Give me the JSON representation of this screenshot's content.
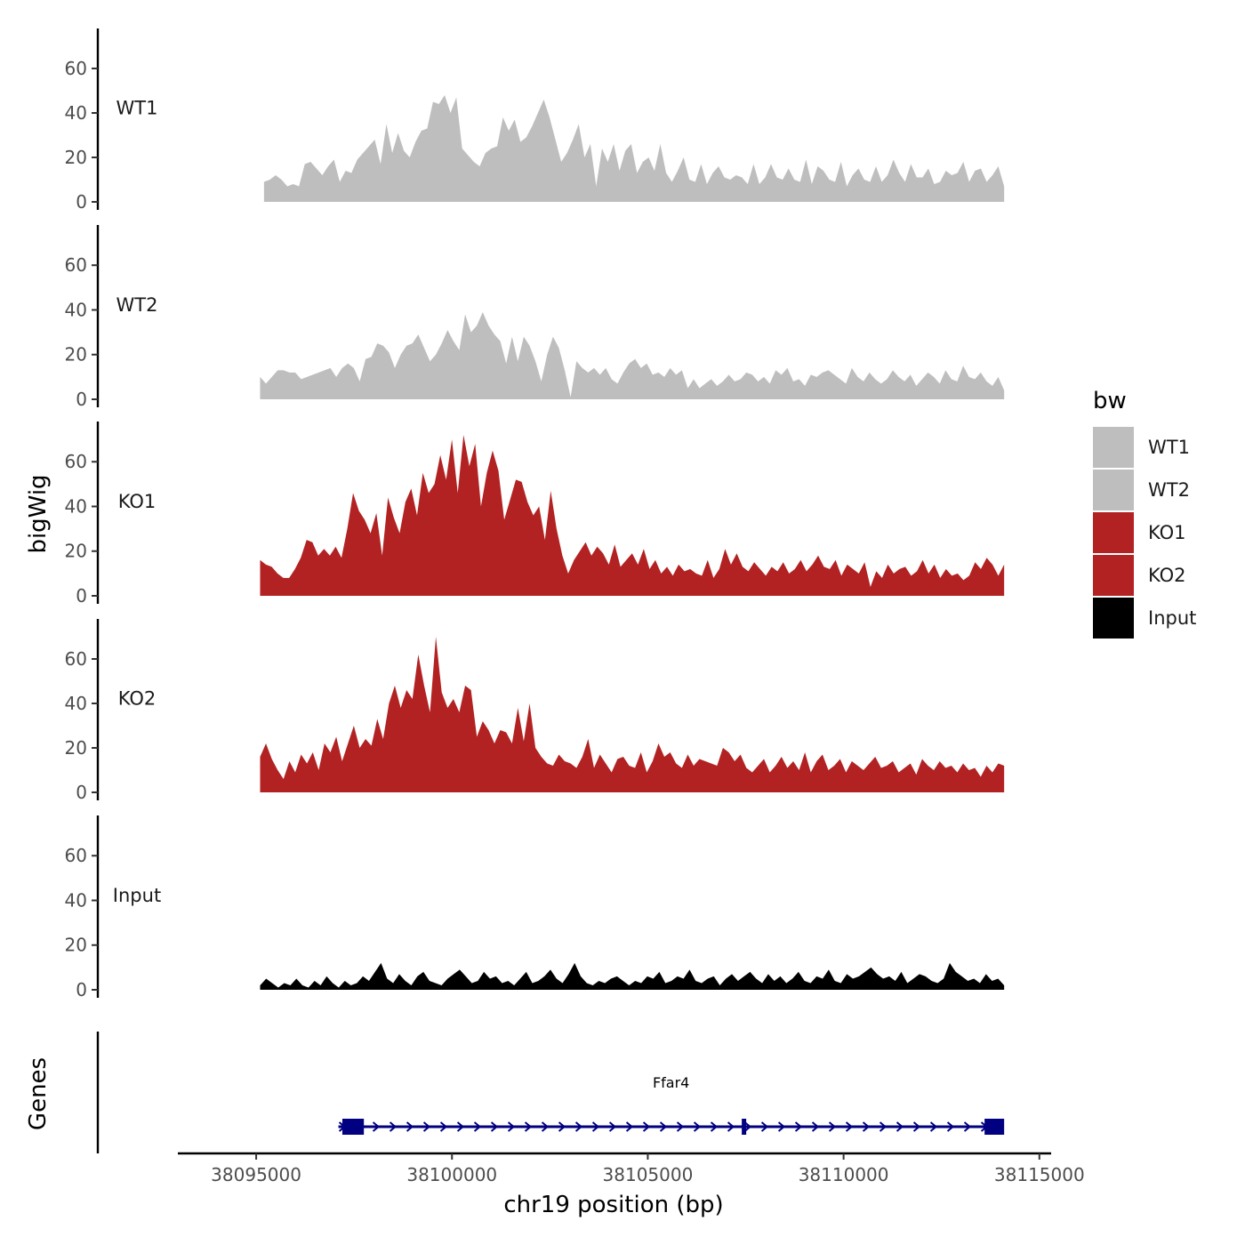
{
  "chart_data": {
    "type": "area",
    "ylabel": "bigWig",
    "xlabel": "chr19 position (bp)",
    "genes_label": "Genes",
    "xlim": [
      38093000,
      38115300
    ],
    "ylim": [
      0,
      78
    ],
    "y_ticks": [
      0,
      20,
      40,
      60
    ],
    "x_ticks": [
      38095000,
      38100000,
      38105000,
      38110000,
      38115000
    ],
    "x_tick_labels": [
      "38095000",
      "38100000",
      "38105000",
      "38110000",
      "38115000"
    ],
    "legend": {
      "title": "bw",
      "entries": [
        {
          "label": "WT1",
          "color": "#bebebe"
        },
        {
          "label": "WT2",
          "color": "#bebebe"
        },
        {
          "label": "KO1",
          "color": "#b22222"
        },
        {
          "label": "KO2",
          "color": "#b22222"
        },
        {
          "label": "Input",
          "color": "#000000"
        }
      ]
    },
    "series": [
      {
        "name": "WT1",
        "color": "#bebebe",
        "x_start": 38095200,
        "x_end": 38114100,
        "values": [
          9,
          10,
          12,
          10,
          7,
          8,
          7,
          17,
          18,
          15,
          12,
          16,
          19,
          9,
          14,
          13,
          19,
          22,
          25,
          28,
          17,
          35,
          22,
          31,
          23,
          20,
          27,
          32,
          33,
          45,
          44,
          48,
          40,
          47,
          24,
          21,
          18,
          16,
          22,
          24,
          25,
          38,
          32,
          37,
          27,
          29,
          34,
          40,
          46,
          38,
          28,
          18,
          22,
          28,
          35,
          20,
          26,
          7,
          24,
          18,
          26,
          14,
          23,
          26,
          13,
          18,
          20,
          14,
          26,
          13,
          9,
          14,
          20,
          10,
          9,
          17,
          8,
          13,
          16,
          11,
          10,
          12,
          11,
          8,
          17,
          8,
          11,
          17,
          11,
          10,
          15,
          10,
          9,
          19,
          8,
          16,
          14,
          10,
          9,
          18,
          7,
          12,
          15,
          10,
          9,
          16,
          9,
          12,
          19,
          13,
          9,
          17,
          11,
          11,
          15,
          8,
          9,
          14,
          12,
          13,
          18,
          9,
          14,
          15,
          9,
          12,
          16,
          7
        ]
      },
      {
        "name": "WT2",
        "color": "#bebebe",
        "x_start": 38095100,
        "x_end": 38114100,
        "values": [
          10,
          7,
          10,
          13,
          13,
          12,
          12,
          9,
          10,
          11,
          12,
          13,
          14,
          10,
          14,
          16,
          14,
          8,
          18,
          19,
          25,
          24,
          21,
          14,
          20,
          24,
          25,
          29,
          23,
          17,
          20,
          25,
          31,
          26,
          22,
          38,
          30,
          33,
          39,
          33,
          29,
          26,
          16,
          28,
          17,
          28,
          24,
          17,
          8,
          20,
          28,
          23,
          13,
          1,
          17,
          14,
          12,
          14,
          11,
          14,
          9,
          7,
          12,
          16,
          18,
          14,
          16,
          11,
          12,
          10,
          14,
          11,
          13,
          5,
          9,
          5,
          7,
          9,
          6,
          8,
          11,
          8,
          9,
          12,
          11,
          8,
          10,
          7,
          13,
          11,
          14,
          8,
          9,
          6,
          11,
          10,
          12,
          13,
          11,
          9,
          7,
          14,
          10,
          8,
          12,
          9,
          7,
          9,
          13,
          10,
          8,
          11,
          6,
          9,
          12,
          10,
          7,
          13,
          9,
          8,
          15,
          10,
          9,
          12,
          8,
          6,
          10,
          4
        ]
      },
      {
        "name": "KO1",
        "color": "#b22222",
        "x_start": 38095100,
        "x_end": 38114100,
        "values": [
          16,
          14,
          13,
          10,
          8,
          8,
          12,
          17,
          25,
          24,
          18,
          21,
          18,
          22,
          17,
          30,
          46,
          38,
          34,
          28,
          37,
          18,
          44,
          35,
          28,
          42,
          48,
          36,
          55,
          46,
          50,
          63,
          52,
          70,
          46,
          72,
          58,
          68,
          40,
          55,
          65,
          56,
          34,
          43,
          52,
          51,
          42,
          36,
          40,
          25,
          47,
          30,
          18,
          10,
          16,
          20,
          24,
          18,
          22,
          19,
          14,
          23,
          13,
          16,
          19,
          14,
          21,
          12,
          16,
          10,
          13,
          9,
          14,
          11,
          12,
          10,
          9,
          16,
          8,
          12,
          21,
          14,
          19,
          13,
          11,
          15,
          12,
          9,
          13,
          11,
          15,
          10,
          12,
          16,
          11,
          14,
          18,
          13,
          12,
          16,
          9,
          14,
          12,
          10,
          15,
          4,
          11,
          8,
          14,
          10,
          12,
          13,
          9,
          11,
          16,
          10,
          14,
          8,
          12,
          9,
          10,
          7,
          9,
          15,
          12,
          17,
          14,
          9,
          14
        ]
      },
      {
        "name": "KO2",
        "color": "#b22222",
        "x_start": 38095100,
        "x_end": 38114100,
        "values": [
          16,
          22,
          15,
          10,
          6,
          14,
          9,
          17,
          13,
          18,
          10,
          22,
          18,
          25,
          14,
          22,
          30,
          20,
          24,
          21,
          33,
          24,
          40,
          48,
          38,
          46,
          42,
          62,
          48,
          36,
          70,
          45,
          38,
          42,
          36,
          48,
          46,
          25,
          32,
          28,
          22,
          28,
          27,
          22,
          38,
          23,
          40,
          20,
          16,
          13,
          12,
          17,
          14,
          13,
          11,
          16,
          24,
          11,
          17,
          13,
          9,
          15,
          16,
          12,
          11,
          18,
          9,
          14,
          22,
          16,
          18,
          13,
          11,
          17,
          12,
          15,
          14,
          13,
          12,
          20,
          18,
          14,
          17,
          11,
          9,
          12,
          15,
          9,
          12,
          16,
          11,
          14,
          10,
          18,
          9,
          14,
          17,
          10,
          12,
          15,
          9,
          14,
          12,
          10,
          13,
          16,
          11,
          12,
          14,
          9,
          11,
          13,
          8,
          15,
          12,
          10,
          14,
          11,
          12,
          9,
          13,
          10,
          11,
          7,
          12,
          9,
          13,
          12
        ]
      },
      {
        "name": "Input",
        "color": "#000000",
        "x_start": 38095100,
        "x_end": 38114100,
        "values": [
          2,
          5,
          3,
          1,
          3,
          2,
          5,
          2,
          1,
          4,
          2,
          6,
          3,
          1,
          4,
          2,
          3,
          6,
          4,
          8,
          12,
          5,
          3,
          7,
          4,
          2,
          6,
          8,
          4,
          3,
          2,
          5,
          7,
          9,
          6,
          3,
          4,
          8,
          5,
          6,
          3,
          4,
          2,
          5,
          8,
          3,
          4,
          6,
          9,
          5,
          3,
          7,
          12,
          6,
          3,
          2,
          4,
          3,
          5,
          6,
          4,
          2,
          4,
          3,
          6,
          5,
          8,
          3,
          4,
          6,
          5,
          9,
          4,
          3,
          5,
          6,
          2,
          5,
          7,
          4,
          6,
          8,
          5,
          3,
          7,
          4,
          6,
          3,
          5,
          8,
          4,
          3,
          6,
          5,
          9,
          4,
          3,
          7,
          5,
          6,
          8,
          10,
          7,
          5,
          6,
          4,
          8,
          3,
          5,
          7,
          6,
          4,
          3,
          5,
          12,
          8,
          6,
          4,
          5,
          3,
          7,
          4,
          5,
          2
        ]
      }
    ],
    "gene": {
      "name": "Ffar4",
      "color": "#000080",
      "start": 38097100,
      "end": 38114000,
      "strand": "+",
      "exons": [
        [
          38097200,
          38097750
        ],
        [
          38107400,
          38107500
        ],
        [
          38113600,
          38114100
        ]
      ]
    }
  }
}
